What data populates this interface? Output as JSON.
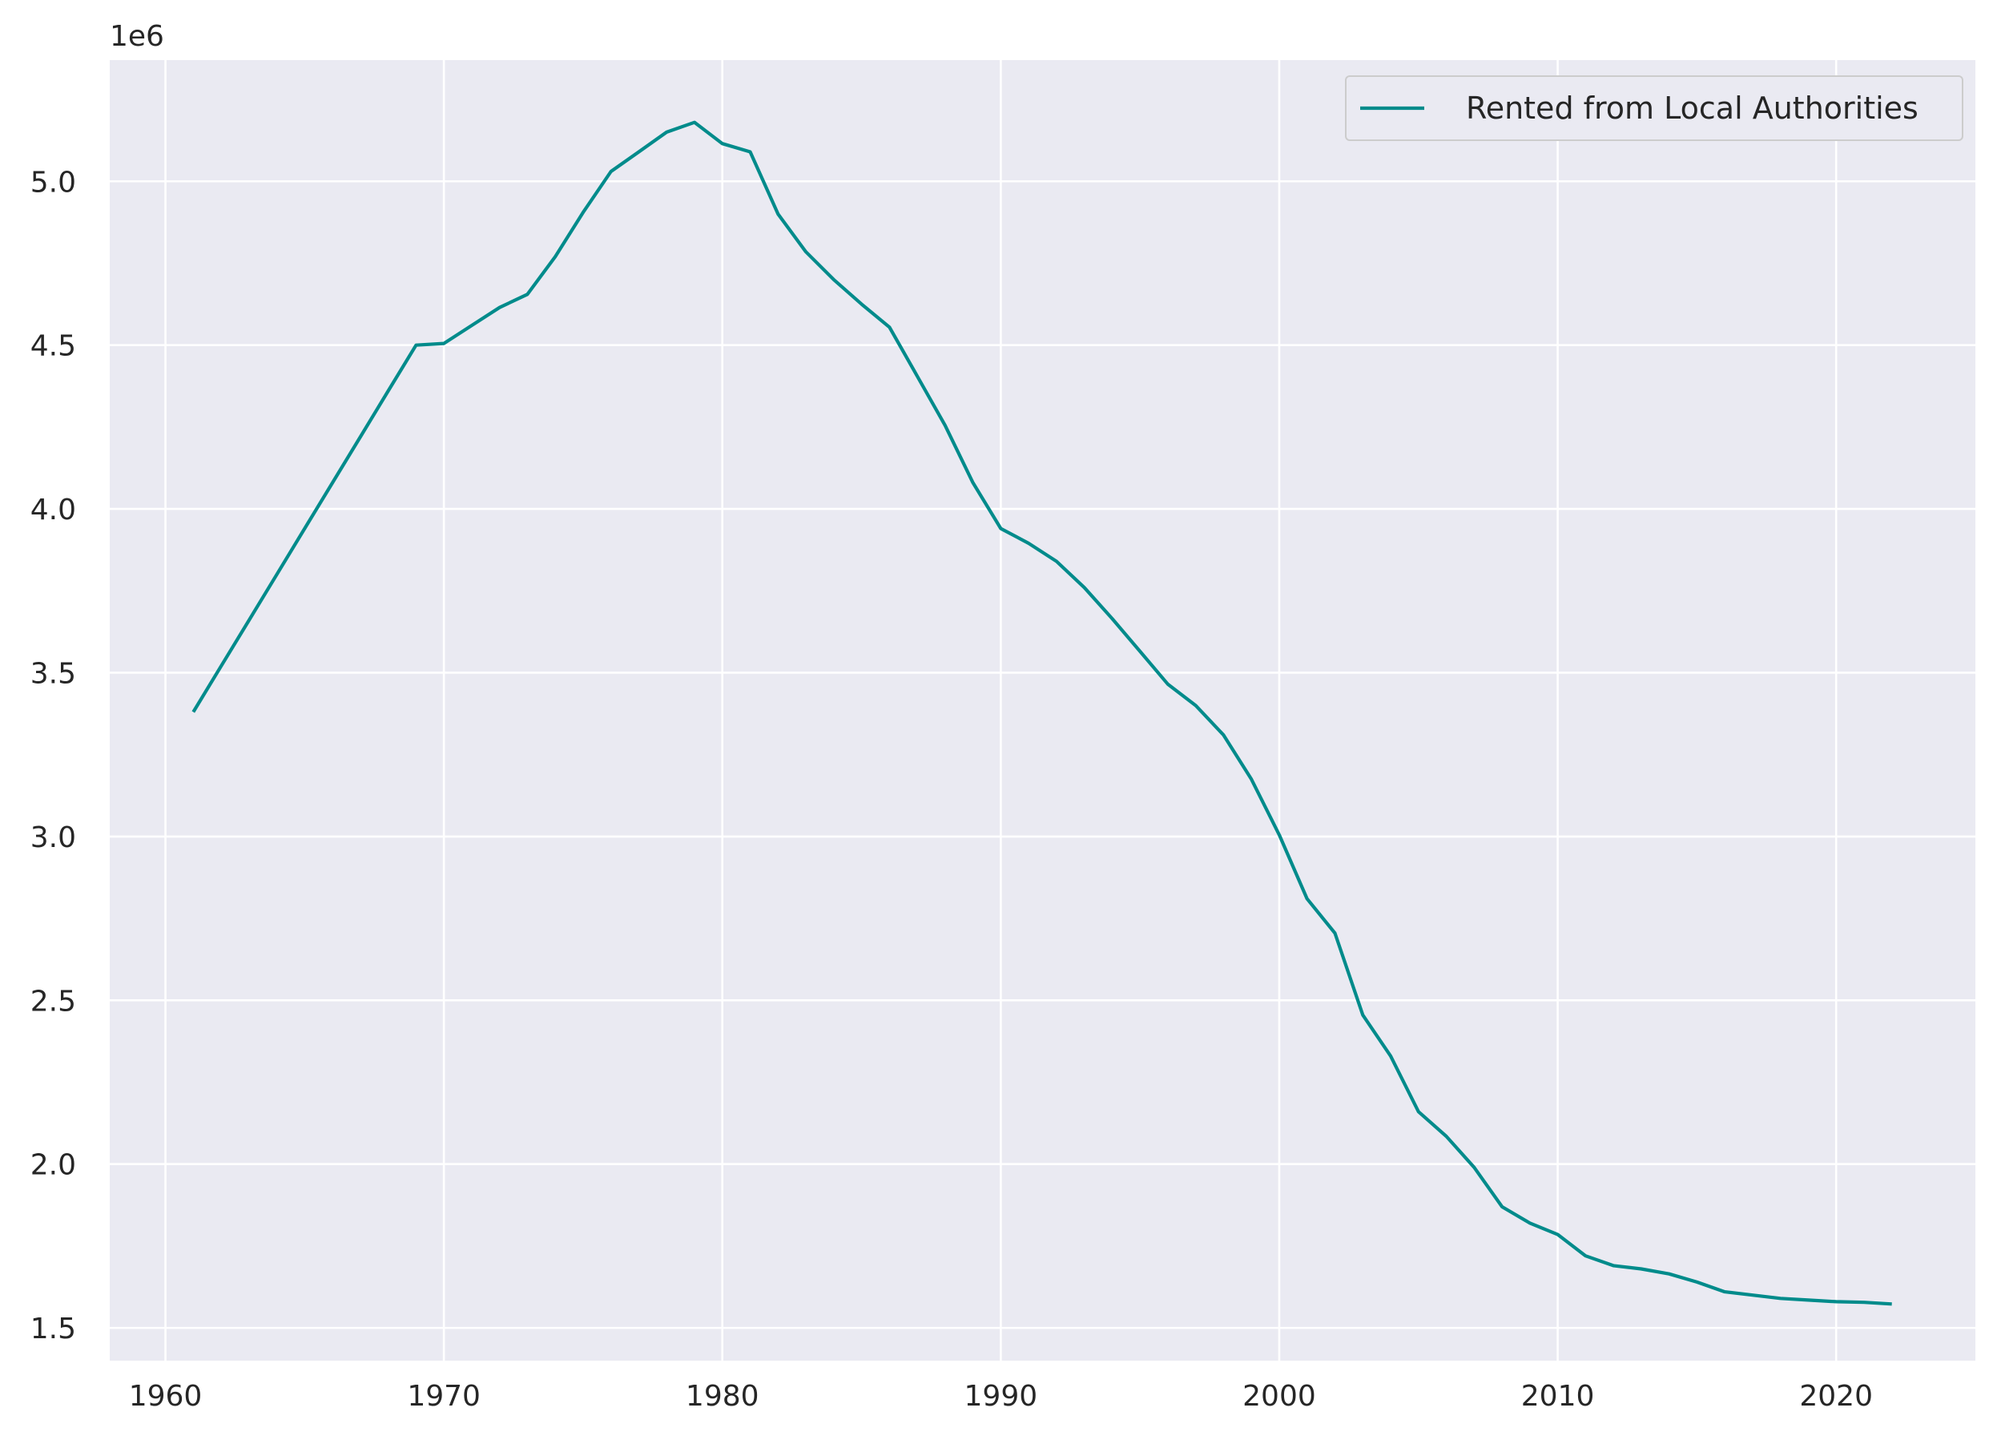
{
  "chart_data": {
    "type": "line",
    "title": "",
    "xlabel": "",
    "ylabel": "",
    "y_offset_label": "1e6",
    "xlim": [
      1958,
      2025
    ],
    "ylim": [
      1.4,
      5.37
    ],
    "xticks": [
      1960,
      1970,
      1980,
      1990,
      2000,
      2010,
      2020
    ],
    "yticks": [
      1.5,
      2.0,
      2.5,
      3.0,
      3.5,
      4.0,
      4.5,
      5.0
    ],
    "xtick_labels": [
      "1960",
      "1970",
      "1980",
      "1990",
      "2000",
      "2010",
      "2020"
    ],
    "ytick_labels": [
      "1.5",
      "2.0",
      "2.5",
      "3.0",
      "3.5",
      "4.0",
      "4.5",
      "5.0"
    ],
    "grid": true,
    "legend_position": "top-right",
    "legend_label": "Rented from Local Authorities",
    "colors": {
      "series": "#008b8b",
      "plot_background": "#eaeaf2",
      "grid": "#ffffff",
      "text": "#262626"
    },
    "series": [
      {
        "name": "Rented from Local Authorities",
        "x": [
          1961,
          1962,
          1963,
          1964,
          1965,
          1966,
          1967,
          1968,
          1969,
          1970,
          1971,
          1972,
          1973,
          1974,
          1975,
          1976,
          1977,
          1978,
          1979,
          1980,
          1981,
          1982,
          1983,
          1984,
          1985,
          1986,
          1987,
          1988,
          1989,
          1990,
          1991,
          1992,
          1993,
          1994,
          1995,
          1996,
          1997,
          1998,
          1999,
          2000,
          2001,
          2002,
          2003,
          2004,
          2005,
          2006,
          2007,
          2008,
          2009,
          2010,
          2011,
          2012,
          2013,
          2014,
          2015,
          2016,
          2017,
          2018,
          2019,
          2020,
          2021,
          2022
        ],
        "values": [
          3.38,
          3.52,
          3.66,
          3.8,
          3.94,
          4.08,
          4.22,
          4.36,
          4.5,
          4.505,
          4.56,
          4.615,
          4.655,
          4.77,
          4.905,
          5.03,
          5.09,
          5.15,
          5.18,
          5.115,
          5.09,
          4.9,
          4.785,
          4.7,
          4.625,
          4.555,
          4.405,
          4.255,
          4.08,
          3.94,
          3.895,
          3.84,
          3.76,
          3.665,
          3.565,
          3.465,
          3.4,
          3.31,
          3.175,
          3.005,
          2.81,
          2.705,
          2.455,
          2.33,
          2.16,
          2.085,
          1.99,
          1.87,
          1.82,
          1.785,
          1.72,
          1.69,
          1.68,
          1.665,
          1.64,
          1.61,
          1.6,
          1.59,
          1.585,
          1.58,
          1.578,
          1.573
        ]
      }
    ]
  }
}
